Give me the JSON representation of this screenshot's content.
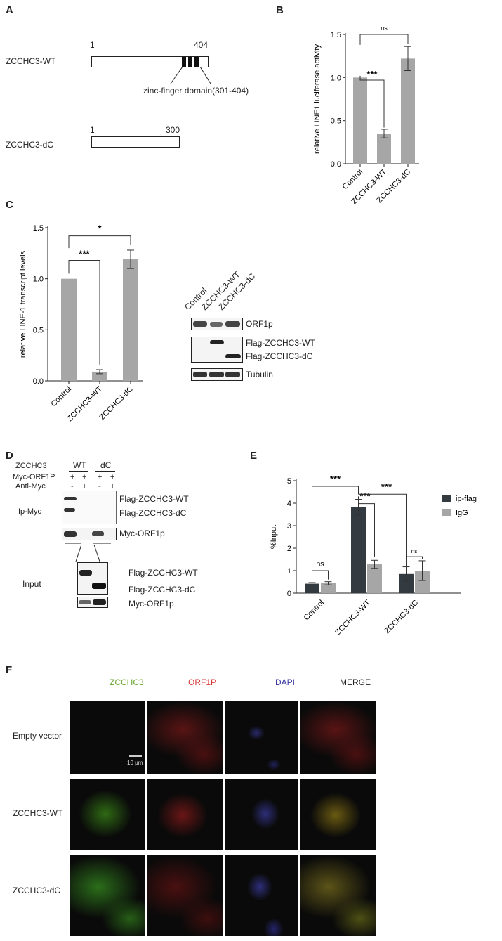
{
  "panels": {
    "A": {
      "label": "A",
      "wt": {
        "name": "ZCCHC3-WT",
        "start": "1",
        "end": "404",
        "domain": "zinc-finger domain(301-404)"
      },
      "dc": {
        "name": "ZCCHC3-dC",
        "start": "1",
        "end": "300"
      }
    },
    "B": {
      "label": "B"
    },
    "C": {
      "label": "C",
      "blot_lanes": [
        "Control",
        "ZCCHC3-WT",
        "ZCCHC3-dC"
      ],
      "blot_labels": {
        "orf1p": "ORF1p",
        "flag_wt": "Flag-ZCCHC3-WT",
        "flag_dc": "Flag-ZCCHC3-dC",
        "tubulin": "Tubulin"
      }
    },
    "D": {
      "label": "D",
      "zcchc3": "ZCCHC3",
      "wt": "WT",
      "dc": "dC",
      "myc_orf1p": "Myc-ORF1P",
      "anti_myc": "Anti-Myc",
      "row1_signs": [
        "+",
        "+",
        "+",
        "+"
      ],
      "row2_signs": [
        "-",
        "+",
        "-",
        "+"
      ],
      "ip_label": "Ip-Myc",
      "input_label": "Input",
      "ip_flag_wt": "Flag-ZCCHC3-WT",
      "ip_flag_dc": "Flag-ZCCHC3-dC",
      "ip_myc": "Myc-ORF1p",
      "in_flag_wt": "Flag-ZCCHC3-WT",
      "in_flag_dc": "Flag-ZCCHC3-dC",
      "in_myc": "Myc-ORF1p"
    },
    "E": {
      "label": "E"
    },
    "F": {
      "label": "F",
      "columns": [
        "ZCCHC3",
        "ORF1P",
        "DAPI",
        "MERGE"
      ],
      "rows": [
        "Empty vector",
        "ZCCHC3-WT",
        "ZCCHC3-dC"
      ],
      "scale": "10 μm"
    }
  },
  "colors": {
    "bar_gray": "#a6a6a6",
    "bar_dark": "#333a40",
    "green": "#5aa32e",
    "red": "#d83a3a",
    "blue": "#3b3ba3"
  },
  "chart_data": [
    {
      "id": "B",
      "type": "bar",
      "categories": [
        "Control",
        "ZCCHC3-WT",
        "ZCCHC3-dC"
      ],
      "values": [
        1.0,
        0.35,
        1.22
      ],
      "errors": [
        0,
        0.05,
        0.14
      ],
      "ylabel": "relative LINE1 luciferase activity",
      "ylim": [
        0,
        1.5
      ],
      "yticks": [
        "0.0",
        "0.5",
        "1.0",
        "1.5"
      ],
      "significance": [
        {
          "from": 0,
          "to": 1,
          "label": "***"
        },
        {
          "from": 0,
          "to": 2,
          "label": "ns"
        }
      ]
    },
    {
      "id": "C",
      "type": "bar",
      "categories": [
        "Control",
        "ZCCHC3-WT",
        "ZCCHC3-dC"
      ],
      "values": [
        1.0,
        0.09,
        1.19
      ],
      "errors": [
        0,
        0.02,
        0.09
      ],
      "ylabel": "relative LINE-1 transcript levels",
      "ylim": [
        0,
        1.5
      ],
      "yticks": [
        "0.0",
        "0.5",
        "1.0",
        "1.5"
      ],
      "significance": [
        {
          "from": 0,
          "to": 1,
          "label": "***"
        },
        {
          "from": 0,
          "to": 2,
          "label": "*"
        }
      ]
    },
    {
      "id": "E",
      "type": "bar",
      "categories": [
        "Control",
        "ZCCHC3-WT",
        "ZCCHC3-dC"
      ],
      "series": [
        {
          "name": "ip-flag",
          "values": [
            0.42,
            3.82,
            0.85
          ],
          "errors": [
            0.05,
            0.35,
            0.32
          ]
        },
        {
          "name": "IgG",
          "values": [
            0.44,
            1.28,
            1.0
          ],
          "errors": [
            0.07,
            0.18,
            0.44
          ]
        }
      ],
      "ylabel": "%Input",
      "ylim": [
        0,
        5
      ],
      "yticks": [
        "0",
        "1",
        "2",
        "3",
        "4",
        "5"
      ],
      "legend": "right",
      "significance": [
        {
          "label": "ns"
        },
        {
          "label": "***"
        },
        {
          "label": "***"
        },
        {
          "label": "***"
        },
        {
          "label": "ns"
        }
      ]
    }
  ]
}
